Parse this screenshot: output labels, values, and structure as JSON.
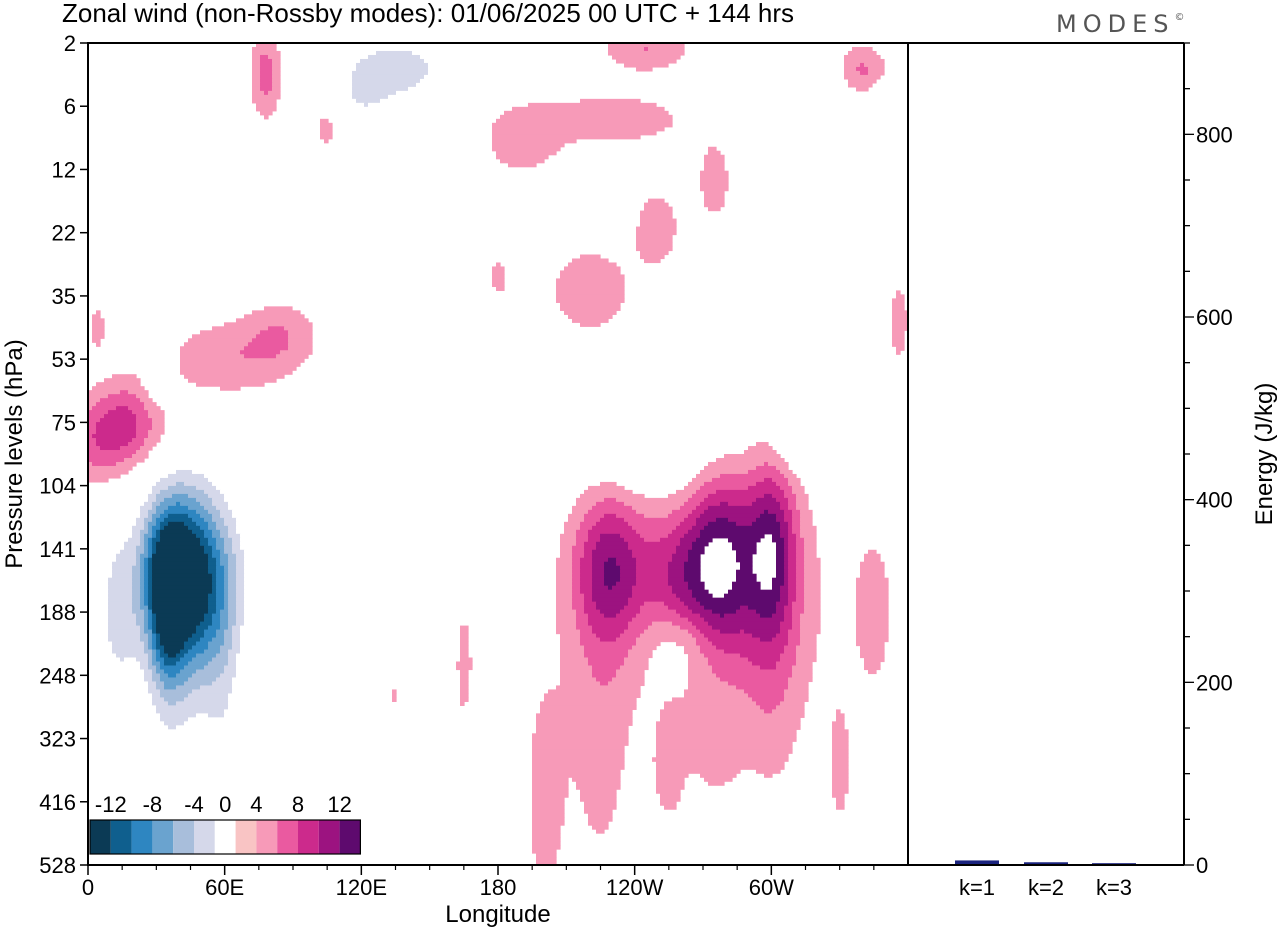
{
  "title": "Zonal wind (non-Rossby modes):  01/06/2025  00 UTC  + 144 hrs",
  "brand": "MODES",
  "brand_mark": "©",
  "chart_data": [
    {
      "type": "heatmap",
      "xlabel": "Longitude",
      "ylabel": "Pressure levels (hPa)",
      "x_ticks": [
        "0",
        "60E",
        "120E",
        "180",
        "120W",
        "60W"
      ],
      "x_tick_values": [
        0,
        60,
        120,
        180,
        240,
        300
      ],
      "xlim": [
        0,
        360
      ],
      "y_ticks": [
        "2",
        "6",
        "12",
        "22",
        "35",
        "53",
        "75",
        "104",
        "141",
        "188",
        "248",
        "323",
        "416",
        "528"
      ],
      "colorbar": {
        "tick_labels": [
          "-12",
          "-8",
          "-4",
          "0",
          "4",
          "8",
          "12"
        ],
        "levels": [
          -14,
          -12,
          -10,
          -8,
          -6,
          -4,
          -2,
          2,
          4,
          6,
          8,
          10,
          12,
          14
        ],
        "colors": [
          "#0b3a55",
          "#0f5f8e",
          "#2e86c1",
          "#6aa3cf",
          "#a8bedb",
          "#d5d8ea",
          "#ffffff",
          "#f9c4c4",
          "#f79ab8",
          "#ea5aa0",
          "#cc2a8c",
          "#9c1380",
          "#5e0a6e"
        ]
      },
      "blobs": [
        {
          "lon": 45,
          "level": 8.5,
          "sx": 14,
          "sy": 1.0,
          "value": -15
        },
        {
          "lon": 35,
          "level": 8.3,
          "sx": 8,
          "sy": 0.8,
          "value": -7
        },
        {
          "lon": 35,
          "level": 9.3,
          "sx": 5,
          "sy": 0.8,
          "value": -5
        },
        {
          "lon": 40,
          "level": 10.4,
          "sx": 15,
          "sy": 1.8,
          "value": -2.5
        },
        {
          "lon": 60,
          "level": 10.5,
          "sx": 6,
          "sy": 1.2,
          "value": -2
        },
        {
          "lon": 12,
          "level": 9.0,
          "sx": 6,
          "sy": 1.0,
          "value": -4
        },
        {
          "lon": 90,
          "level": 8.2,
          "sx": 8,
          "sy": 0.6,
          "value": -2.5
        },
        {
          "lon": 135,
          "level": 8.5,
          "sx": 12,
          "sy": 0.9,
          "value": -2.5
        },
        {
          "lon": 10,
          "level": 1.0,
          "sx": 6,
          "sy": 0.5,
          "value": -3
        },
        {
          "lon": 25,
          "level": 1.3,
          "sx": 5,
          "sy": 0.5,
          "value": -3
        },
        {
          "lon": 45,
          "level": 0.4,
          "sx": 5,
          "sy": 0.4,
          "value": -4
        },
        {
          "lon": 135,
          "level": 0.4,
          "sx": 18,
          "sy": 0.35,
          "value": -5.5
        },
        {
          "lon": 120,
          "level": 1.0,
          "sx": 12,
          "sy": 0.35,
          "value": -3
        },
        {
          "lon": 325,
          "level": 0.7,
          "sx": 24,
          "sy": 0.45,
          "value": -3.5
        },
        {
          "lon": 350,
          "level": 1.4,
          "sx": 7,
          "sy": 0.6,
          "value": -3
        },
        {
          "lon": 290,
          "level": 4.3,
          "sx": 12,
          "sy": 0.3,
          "value": -2.5
        },
        {
          "lon": 40,
          "level": 3.6,
          "sx": 12,
          "sy": 0.3,
          "value": -2.5
        },
        {
          "lon": 310,
          "level": 6.2,
          "sx": 7,
          "sy": 0.4,
          "value": -2.5
        },
        {
          "lon": 30,
          "level": 5.3,
          "sx": 5,
          "sy": 0.4,
          "value": -2.5
        },
        {
          "lon": 250,
          "level": 6.5,
          "sx": 30,
          "sy": 0.5,
          "value": -2.5
        },
        {
          "lon": 90,
          "level": 12.0,
          "sx": 8,
          "sy": 1.2,
          "value": -2.5
        },
        {
          "lon": 115,
          "level": 11.2,
          "sx": 6,
          "sy": 1.0,
          "value": -2.5
        },
        {
          "lon": 260,
          "level": 9.5,
          "sx": 10,
          "sy": 0.4,
          "value": -2.5
        },
        {
          "lon": 5,
          "level": 6.3,
          "sx": 10,
          "sy": 0.5,
          "value": 4.5
        },
        {
          "lon": 20,
          "level": 6.0,
          "sx": 12,
          "sy": 0.5,
          "value": 5.5
        },
        {
          "lon": 60,
          "level": 5.0,
          "sx": 20,
          "sy": 0.45,
          "value": 3.5
        },
        {
          "lon": 85,
          "level": 4.6,
          "sx": 12,
          "sy": 0.4,
          "value": 3.2
        },
        {
          "lon": 230,
          "level": 8.3,
          "sx": 12,
          "sy": 0.8,
          "value": 7.5
        },
        {
          "lon": 278,
          "level": 8.2,
          "sx": 10,
          "sy": 1.0,
          "value": 9.5
        },
        {
          "lon": 300,
          "level": 8.0,
          "sx": 8,
          "sy": 1.0,
          "value": 8.5
        },
        {
          "lon": 260,
          "level": 8.4,
          "sx": 10,
          "sy": 0.7,
          "value": 5.0
        },
        {
          "lon": 280,
          "level": 8.8,
          "sx": 40,
          "sy": 1.6,
          "value": 2.8
        },
        {
          "lon": 225,
          "level": 10.5,
          "sx": 10,
          "sy": 2.3,
          "value": 2.8
        },
        {
          "lon": 300,
          "level": 10.0,
          "sx": 10,
          "sy": 1.5,
          "value": 2.5
        },
        {
          "lon": 200,
          "level": 12.0,
          "sx": 8,
          "sy": 1.8,
          "value": 2.5
        },
        {
          "lon": 165,
          "level": 9.8,
          "sx": 4,
          "sy": 1.0,
          "value": 2.5
        },
        {
          "lon": 135,
          "level": 10.0,
          "sx": 4,
          "sy": 1.0,
          "value": 2.5
        },
        {
          "lon": 220,
          "level": 3.9,
          "sx": 16,
          "sy": 0.6,
          "value": 3.0
        },
        {
          "lon": 250,
          "level": 2.9,
          "sx": 8,
          "sy": 0.5,
          "value": 3.0
        },
        {
          "lon": 245,
          "level": 0.1,
          "sx": 14,
          "sy": 0.25,
          "value": 4.0
        },
        {
          "lon": 230,
          "level": 1.2,
          "sx": 30,
          "sy": 0.35,
          "value": 3.0
        },
        {
          "lon": 190,
          "level": 1.6,
          "sx": 12,
          "sy": 0.4,
          "value": 3.0
        },
        {
          "lon": 340,
          "level": 0.5,
          "sx": 10,
          "sy": 0.35,
          "value": 7.0
        },
        {
          "lon": 78,
          "level": 0.5,
          "sx": 5,
          "sy": 0.5,
          "value": 5.0
        },
        {
          "lon": 105,
          "level": 1.3,
          "sx": 5,
          "sy": 0.3,
          "value": 3.5
        },
        {
          "lon": 275,
          "level": 2.2,
          "sx": 6,
          "sy": 0.5,
          "value": 3.0
        },
        {
          "lon": 356,
          "level": 4.4,
          "sx": 4,
          "sy": 0.6,
          "value": 2.8
        },
        {
          "lon": 4,
          "level": 4.5,
          "sx": 3,
          "sy": 0.3,
          "value": 2.8
        },
        {
          "lon": 180,
          "level": 3.7,
          "sx": 4,
          "sy": 0.3,
          "value": 2.5
        },
        {
          "lon": 255,
          "level": 11.5,
          "sx": 5,
          "sy": 0.6,
          "value": 3.0
        },
        {
          "lon": 275,
          "level": 11.2,
          "sx": 8,
          "sy": 0.5,
          "value": 2.5
        },
        {
          "lon": 345,
          "level": 9.0,
          "sx": 6,
          "sy": 0.9,
          "value": 2.5
        },
        {
          "lon": 330,
          "level": 11.5,
          "sx": 4,
          "sy": 0.8,
          "value": 2.5
        }
      ]
    },
    {
      "type": "bar",
      "ylabel": "Energy (J/kg)",
      "categories": [
        "k=1",
        "k=2",
        "k=3"
      ],
      "values": [
        5,
        3,
        2
      ],
      "ylim": [
        0,
        900
      ],
      "y_ticks": [
        0,
        200,
        400,
        600,
        800
      ],
      "bar_color": "#1a237e"
    }
  ]
}
